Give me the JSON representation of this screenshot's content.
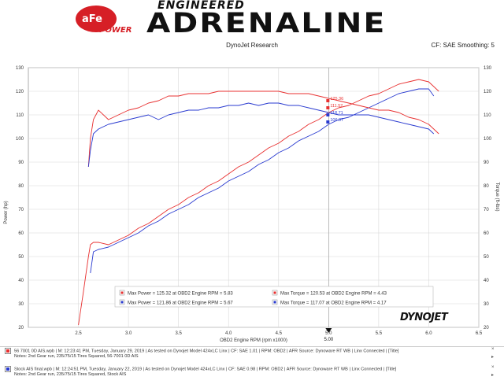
{
  "header": {
    "logo_text": "aFe POWER",
    "brand_top": "ENGINEERED",
    "brand_main": "ADRENALINE",
    "subtitle": "DynoJet Research",
    "cf_text": "CF: SAE Smoothing: 5"
  },
  "chart_data": {
    "type": "line",
    "title": "",
    "xlabel": "OBD2 Engine RPM (rpm x1000)",
    "ylabel": "Power (hp)",
    "y2label": "Torque (ft-lbs)",
    "xlim": [
      2.0,
      6.5
    ],
    "ylim": [
      20,
      130
    ],
    "x_ticks": [
      "2.5",
      "3.0",
      "3.5",
      "4.0",
      "4.5",
      "5.0",
      "5.5",
      "6.0",
      "6.5"
    ],
    "y_ticks": [
      "20",
      "30",
      "40",
      "50",
      "60",
      "70",
      "80",
      "90",
      "100",
      "110",
      "120",
      "130"
    ],
    "grid": true,
    "cursor_x": 5.0,
    "cursor_label": "5.00",
    "series": [
      {
        "label": "power_run1",
        "color": "#e83030",
        "axis": "left",
        "x": [
          2.5,
          2.55,
          2.6,
          2.62,
          2.65,
          2.7,
          2.8,
          2.9,
          3.0,
          3.1,
          3.2,
          3.3,
          3.4,
          3.5,
          3.6,
          3.7,
          3.8,
          3.9,
          4.0,
          4.1,
          4.2,
          4.3,
          4.4,
          4.5,
          4.6,
          4.7,
          4.8,
          4.9,
          5.0,
          5.1,
          5.2,
          5.3,
          5.4,
          5.5,
          5.6,
          5.7,
          5.8,
          5.9,
          6.0,
          6.05,
          6.1
        ],
        "y": [
          21,
          35,
          50,
          55,
          56,
          56,
          55,
          57,
          59,
          62,
          64,
          67,
          70,
          72,
          75,
          77,
          80,
          82,
          85,
          88,
          90,
          93,
          96,
          98,
          101,
          103,
          106,
          108,
          111,
          113,
          114,
          116,
          118,
          119,
          121,
          123,
          124,
          125,
          124,
          122,
          120
        ]
      },
      {
        "label": "power_run2",
        "color": "#2a3bd0",
        "axis": "left",
        "x": [
          2.62,
          2.65,
          2.7,
          2.8,
          2.9,
          3.0,
          3.1,
          3.2,
          3.3,
          3.4,
          3.5,
          3.6,
          3.7,
          3.8,
          3.9,
          4.0,
          4.1,
          4.2,
          4.3,
          4.4,
          4.5,
          4.6,
          4.7,
          4.8,
          4.9,
          5.0,
          5.1,
          5.2,
          5.3,
          5.4,
          5.5,
          5.6,
          5.7,
          5.8,
          5.9,
          6.0,
          6.05
        ],
        "y": [
          43,
          52,
          53,
          54,
          56,
          58,
          60,
          63,
          65,
          68,
          70,
          72,
          75,
          77,
          79,
          82,
          84,
          86,
          89,
          91,
          94,
          96,
          99,
          101,
          103,
          106,
          108,
          109,
          111,
          113,
          115,
          117,
          119,
          120,
          121,
          121,
          118
        ]
      },
      {
        "label": "torque_run1",
        "color": "#e83030",
        "axis": "right",
        "x": [
          2.6,
          2.62,
          2.65,
          2.7,
          2.8,
          2.9,
          3.0,
          3.1,
          3.2,
          3.3,
          3.4,
          3.5,
          3.6,
          3.7,
          3.8,
          3.9,
          4.0,
          4.1,
          4.2,
          4.3,
          4.4,
          4.5,
          4.6,
          4.7,
          4.8,
          4.9,
          5.0,
          5.1,
          5.2,
          5.3,
          5.4,
          5.5,
          5.6,
          5.7,
          5.8,
          5.9,
          6.0,
          6.05,
          6.1
        ],
        "y": [
          88,
          100,
          108,
          112,
          108,
          110,
          112,
          113,
          115,
          116,
          118,
          118,
          119,
          119,
          119,
          120,
          120,
          120,
          120,
          120,
          120,
          120,
          119,
          119,
          119,
          118,
          117,
          116,
          115,
          114,
          113,
          112,
          112,
          111,
          109,
          108,
          106,
          104,
          102
        ]
      },
      {
        "label": "torque_run2",
        "color": "#2a3bd0",
        "axis": "right",
        "x": [
          2.6,
          2.62,
          2.65,
          2.7,
          2.8,
          2.9,
          3.0,
          3.1,
          3.2,
          3.3,
          3.4,
          3.5,
          3.6,
          3.7,
          3.8,
          3.9,
          4.0,
          4.1,
          4.2,
          4.3,
          4.4,
          4.5,
          4.6,
          4.7,
          4.8,
          4.9,
          5.0,
          5.1,
          5.2,
          5.3,
          5.4,
          5.5,
          5.6,
          5.7,
          5.8,
          5.9,
          6.0,
          6.05
        ],
        "y": [
          88,
          95,
          102,
          104,
          106,
          107,
          108,
          109,
          110,
          108,
          110,
          111,
          112,
          112,
          113,
          113,
          114,
          114,
          115,
          114,
          115,
          115,
          114,
          114,
          113,
          112,
          111,
          110,
          110,
          110,
          110,
          109,
          108,
          107,
          106,
          105,
          104,
          102
        ]
      }
    ],
    "cursor_values": [
      {
        "text": "125.36",
        "color": "#e83030",
        "y": 116
      },
      {
        "text": "111.52",
        "color": "#e83030",
        "y": 113
      },
      {
        "text": "118.71",
        "color": "#2a3bd0",
        "y": 110
      },
      {
        "text": "106.37",
        "color": "#2a3bd0",
        "y": 107
      }
    ],
    "legend": [
      {
        "color": "#e83030",
        "text": "Max Power = 125.32 at OBD2 Engine RPM = 5.83"
      },
      {
        "color": "#e83030",
        "text": "Max Torque = 120.53 at OBD2 Engine RPM = 4.43"
      },
      {
        "color": "#2a3bd0",
        "text": "Max Power = 121.86 at OBD2 Engine RPM = 5.67"
      },
      {
        "color": "#2a3bd0",
        "text": "Max Torque = 117.07 at OBD2 Engine RPM = 4.17"
      }
    ],
    "legend_position": "bottom-center"
  },
  "brand_dynojet": "DYNOJET",
  "footer": {
    "run1_color": "#e83030",
    "run1_line": "56 7001 0D AIS.wpb  | M: 12:23:41 PM, Tuesday, January 29, 2019  | As tested on Dynojet Model 424xLC Linx  | CF: SAE 1.01  | RPM: OBD2  | AFR Source: Dynoware RT WB  | Linx Connected  | [Title]",
    "run1_note": "Notes: 2nd Gear run, 235/75/15 Tires Squared, 56-7001 0D AIS",
    "run2_color": "#2a3bd0",
    "run2_line": "Stock AIS final.wpb  | M: 12:24:51 PM, Tuesday, January 22, 2019  | As tested on Dynojet Model 424xLC Linx  | CF: SAE 0.98  | RPM: OBD2  | AFR Source: Dynoware RT WB  | Linx Connected  | [Title]",
    "run2_note": "Notes: 2nd Gear run, 235/75/15 Tires Squared, Stock AIS",
    "ctrl_close": "×",
    "ctrl_arrow": "▸"
  }
}
